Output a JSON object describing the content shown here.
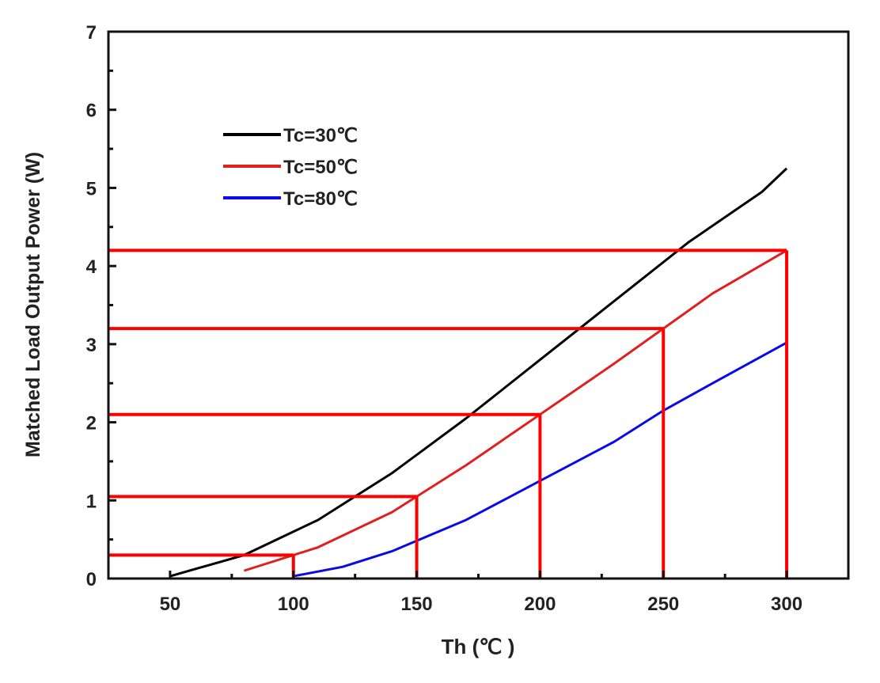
{
  "chart_data": {
    "type": "line",
    "title": "",
    "xlabel": "Th (℃ )",
    "ylabel": "Matched Load Output Power (W)",
    "xlim": [
      25,
      325
    ],
    "ylim": [
      0,
      7
    ],
    "xticks": [
      50,
      100,
      150,
      200,
      250,
      300
    ],
    "yticks": [
      0,
      1,
      2,
      3,
      4,
      5,
      6,
      7
    ],
    "grid": false,
    "legend_position": "top-left",
    "series": [
      {
        "name": "Tc=30℃",
        "color": "#000000",
        "x": [
          50,
          80,
          110,
          140,
          170,
          200,
          230,
          260,
          290,
          300
        ],
        "y": [
          0.03,
          0.3,
          0.75,
          1.35,
          2.05,
          2.8,
          3.55,
          4.3,
          4.95,
          5.25
        ]
      },
      {
        "name": "Tc=50℃",
        "color": "#e0201e",
        "x": [
          80,
          110,
          140,
          150,
          170,
          200,
          230,
          250,
          270,
          300
        ],
        "y": [
          0.1,
          0.4,
          0.85,
          1.05,
          1.45,
          2.1,
          2.75,
          3.2,
          3.65,
          4.2
        ]
      },
      {
        "name": "Tc=80℃",
        "color": "#0a0ae8",
        "x": [
          100,
          120,
          140,
          170,
          200,
          230,
          250,
          270,
          300
        ],
        "y": [
          0.03,
          0.15,
          0.35,
          0.75,
          1.25,
          1.75,
          2.15,
          2.5,
          3.02
        ]
      }
    ],
    "annotations": {
      "color": "#ff0000",
      "markers": [
        {
          "x": 100,
          "y": 0.3
        },
        {
          "x": 150,
          "y": 1.05
        },
        {
          "x": 200,
          "y": 2.1
        },
        {
          "x": 250,
          "y": 3.2
        },
        {
          "x": 300,
          "y": 4.2
        }
      ]
    }
  }
}
